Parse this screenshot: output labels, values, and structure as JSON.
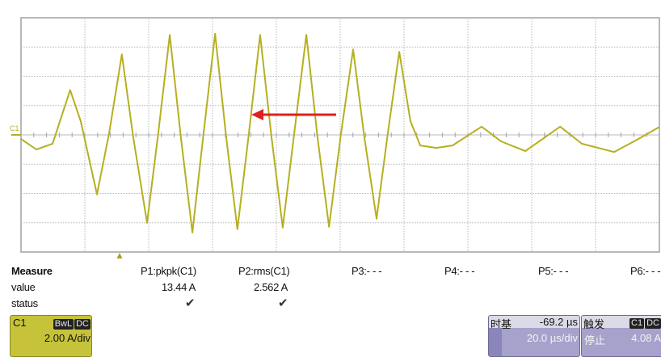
{
  "scope": {
    "channel_marker": "C1",
    "colors": {
      "trace": "#b5b020",
      "grid": "#b9b9b9",
      "arrow": "#e02020",
      "c1_box": "#c6c33a",
      "timebase_box": "#a6a2cc"
    },
    "annotation": "red-arrow-pointing-left"
  },
  "chart_data": {
    "type": "line",
    "x_unit": "µs (relative to screen center)",
    "y_unit": "A",
    "xlim": [
      -100,
      100
    ],
    "ylim": [
      -8,
      8
    ],
    "grid": true,
    "x_divisions": 10,
    "y_divisions": 8,
    "series": [
      {
        "color": "#b5b020",
        "x": [
          -100,
          -95.2,
          -90.1,
          -84.6,
          -81.3,
          -76.2,
          -72.4,
          -68.4,
          -64.8,
          -60.5,
          -57.0,
          -53.4,
          -49.9,
          -46.3,
          -42.8,
          -39.2,
          -35.7,
          -32.2,
          -28.6,
          -25.1,
          -21.5,
          -18.0,
          -14.4,
          -10.6,
          -7.1,
          -3.5,
          0.25,
          4.05,
          7.6,
          11.4,
          14.9,
          18.5,
          22.0,
          25.1,
          30.1,
          35.2,
          44.3,
          50.4,
          58.0,
          68.9,
          75.7,
          85.8,
          93.4,
          99.7
        ],
        "y": [
          -0.28,
          -1.0,
          -0.6,
          3.06,
          0.94,
          -4.06,
          0.1,
          5.5,
          -0.2,
          -6.0,
          0.1,
          6.83,
          -0.2,
          -6.67,
          0.1,
          6.9,
          -0.2,
          -6.44,
          0.1,
          6.83,
          -0.2,
          -6.33,
          0.1,
          6.83,
          -0.2,
          -6.28,
          0.1,
          5.83,
          -0.2,
          -5.72,
          0.1,
          5.67,
          0.94,
          -0.72,
          -0.89,
          -0.72,
          0.56,
          -0.44,
          -1.11,
          0.56,
          -0.6,
          -1.17,
          -0.28,
          0.5
        ]
      }
    ]
  },
  "measure": {
    "header": "Measure",
    "row_value": "value",
    "row_status": "status",
    "params": [
      {
        "label": "P1:pkpk(C1)",
        "value": "13.44 A",
        "status": "✔"
      },
      {
        "label": "P2:rms(C1)",
        "value": "2.562 A",
        "status": "✔"
      },
      {
        "label": "P3:- - -"
      },
      {
        "label": "P4:- - -"
      },
      {
        "label": "P5:- - -"
      },
      {
        "label": "P6:- - -"
      }
    ]
  },
  "c1_box": {
    "title": "C1",
    "badge1": "BwL",
    "badge2": "DC",
    "scale": "2.00 A/div"
  },
  "timebase": {
    "title": "时基",
    "delay": "-69.2 µs",
    "scale": "20.0 µs/div"
  },
  "trigger": {
    "title": "触发",
    "badge1": "C1",
    "badge2": "DC",
    "mode": "停止",
    "level": "4.08 A"
  }
}
